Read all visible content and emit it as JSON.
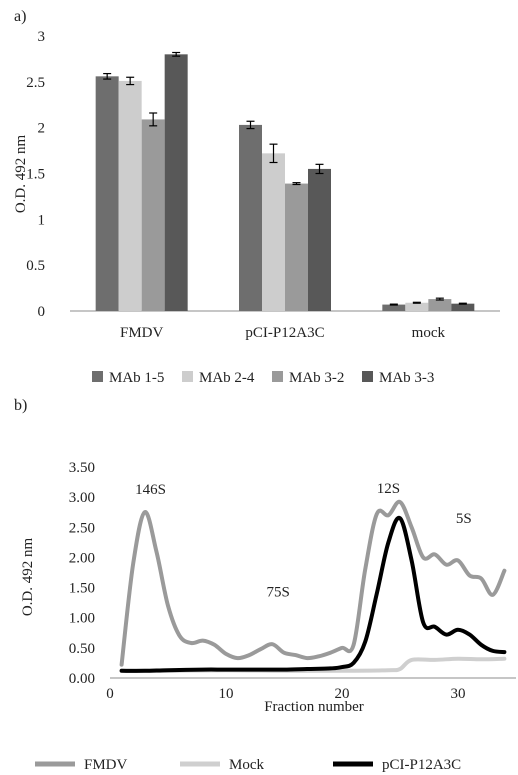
{
  "panels": {
    "a_label": "a)",
    "b_label": "b)"
  },
  "chart_data": [
    {
      "type": "bar",
      "ylabel": "O.D. 492 nm",
      "ylim": [
        0,
        3
      ],
      "yticks": [
        "0",
        "0.5",
        "1",
        "1.5",
        "2",
        "2.5",
        "3"
      ],
      "categories": [
        "FMDV",
        "pCI-P12A3C",
        "mock"
      ],
      "series": [
        {
          "name": "MAb 1-5",
          "color": "#6e6e6e",
          "values": [
            2.56,
            2.03,
            0.07
          ],
          "errors": [
            0.03,
            0.04,
            0.005
          ]
        },
        {
          "name": "MAb 2-4",
          "color": "#cdcdcd",
          "values": [
            2.51,
            1.72,
            0.09
          ],
          "errors": [
            0.04,
            0.1,
            0.005
          ]
        },
        {
          "name": "MAb 3-2",
          "color": "#9a9a9a",
          "values": [
            2.09,
            1.39,
            0.13
          ],
          "errors": [
            0.07,
            0.01,
            0.01
          ]
        },
        {
          "name": "MAb 3-3",
          "color": "#585858",
          "values": [
            2.8,
            1.55,
            0.08
          ],
          "errors": [
            0.02,
            0.05,
            0.005
          ]
        }
      ],
      "grid": false,
      "legend": "bottom"
    },
    {
      "type": "line",
      "xlabel": "Fraction number",
      "ylabel": "O.D. 492 nm",
      "xlim": [
        0,
        35
      ],
      "ylim": [
        0,
        3.5
      ],
      "xticks": [
        "0",
        "10",
        "20",
        "30"
      ],
      "yticks": [
        "0.00",
        "0.50",
        "1.00",
        "1.50",
        "2.00",
        "2.50",
        "3.00",
        "3.50"
      ],
      "annotations": [
        {
          "text": "146S",
          "x": 3.5,
          "y": 3.05
        },
        {
          "text": "75S",
          "x": 14.5,
          "y": 1.35
        },
        {
          "text": "12S",
          "x": 24.0,
          "y": 3.07
        },
        {
          "text": "5S",
          "x": 30.5,
          "y": 2.57
        }
      ],
      "series": [
        {
          "name": "FMDV",
          "color": "#9a9a9a",
          "width": 4,
          "x": [
            1,
            2,
            3,
            4,
            5,
            6,
            7,
            8,
            9,
            10,
            11,
            12,
            13,
            14,
            15,
            16,
            17,
            18,
            19,
            20,
            21,
            22,
            23,
            24,
            25,
            26,
            27,
            28,
            29,
            30,
            31,
            32,
            33,
            34
          ],
          "y": [
            0.22,
            1.9,
            2.75,
            2.1,
            1.2,
            0.7,
            0.58,
            0.62,
            0.55,
            0.4,
            0.33,
            0.38,
            0.48,
            0.56,
            0.42,
            0.38,
            0.33,
            0.36,
            0.42,
            0.5,
            0.55,
            1.8,
            2.72,
            2.7,
            2.92,
            2.5,
            2.0,
            2.05,
            1.88,
            1.95,
            1.7,
            1.65,
            1.38,
            1.78
          ]
        },
        {
          "name": "Mock",
          "color": "#cfcfcf",
          "width": 4,
          "x": [
            1,
            5,
            10,
            15,
            20,
            24,
            25,
            26,
            28,
            30,
            32,
            34
          ],
          "y": [
            0.12,
            0.12,
            0.13,
            0.12,
            0.12,
            0.13,
            0.15,
            0.3,
            0.3,
            0.32,
            0.31,
            0.32
          ]
        },
        {
          "name": "pCI-P12A3C",
          "color": "#000000",
          "width": 4,
          "x": [
            1,
            3,
            5,
            8,
            10,
            13,
            15,
            17,
            19,
            20,
            21,
            22,
            23,
            24,
            25,
            26,
            27,
            28,
            29,
            30,
            31,
            32,
            33,
            34
          ],
          "y": [
            0.12,
            0.12,
            0.13,
            0.14,
            0.14,
            0.14,
            0.14,
            0.15,
            0.16,
            0.18,
            0.25,
            0.6,
            1.4,
            2.25,
            2.65,
            1.95,
            0.92,
            0.85,
            0.72,
            0.8,
            0.72,
            0.55,
            0.45,
            0.43
          ]
        }
      ],
      "grid": false,
      "legend": "bottom"
    }
  ]
}
